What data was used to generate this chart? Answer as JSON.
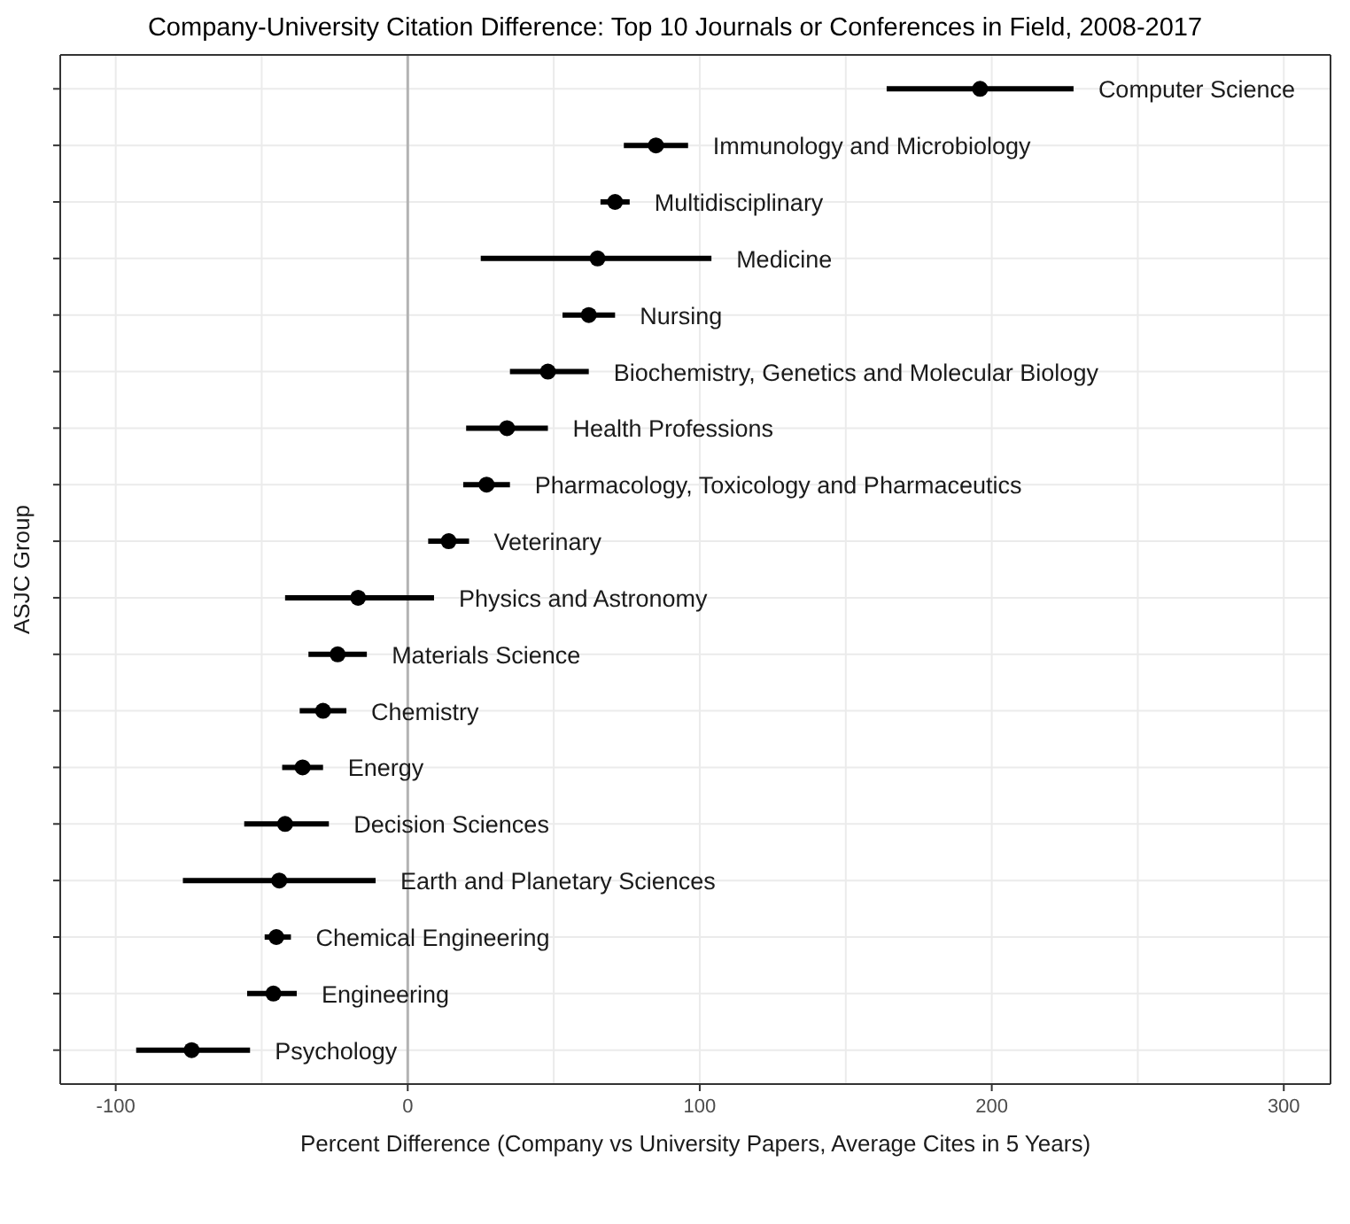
{
  "chart_data": {
    "type": "scatter",
    "orientation": "horizontal",
    "title": "Company-University Citation Difference: Top 10 Journals or Conferences in Field, 2008-2017",
    "xlabel": "Percent Difference (Company vs University Papers, Average Cites in 5 Years)",
    "ylabel": "ASJC Group",
    "categories": [
      "Computer Science",
      "Immunology and Microbiology",
      "Multidisciplinary",
      "Medicine",
      "Nursing",
      "Biochemistry, Genetics and Molecular Biology",
      "Health Professions",
      "Pharmacology, Toxicology and Pharmaceutics",
      "Veterinary",
      "Physics and Astronomy",
      "Materials Science",
      "Chemistry",
      "Energy",
      "Decision Sciences",
      "Earth and Planetary Sciences",
      "Chemical Engineering",
      "Engineering",
      "Psychology"
    ],
    "values": [
      196,
      85,
      71,
      65,
      62,
      48,
      34,
      27,
      14,
      -17,
      -24,
      -29,
      -36,
      -42,
      -44,
      -45,
      -46,
      -74
    ],
    "errors": [
      [
        164,
        228
      ],
      [
        74,
        96
      ],
      [
        66,
        76
      ],
      [
        25,
        104
      ],
      [
        53,
        71
      ],
      [
        35,
        62
      ],
      [
        20,
        48
      ],
      [
        19,
        35
      ],
      [
        7,
        21
      ],
      [
        -42,
        9
      ],
      [
        -34,
        -14
      ],
      [
        -37,
        -21
      ],
      [
        -43,
        -29
      ],
      [
        -56,
        -27
      ],
      [
        -77,
        -11
      ],
      [
        -49,
        -40
      ],
      [
        -55,
        -38
      ],
      [
        -93,
        -54
      ]
    ],
    "color": "#000000",
    "marker": "circle",
    "xlim": [
      -119,
      316
    ],
    "xticks": [
      -100,
      {
        "value": -50,
        "label": null
      },
      0,
      {
        "value": 50,
        "label": null
      },
      100,
      {
        "value": 150,
        "label": null
      },
      200,
      {
        "value": 250,
        "label": null
      },
      300
    ],
    "ref_lines": [
      {
        "axis": "x",
        "value": 0,
        "color": "#b3b3b3"
      }
    ],
    "grid": true,
    "tick_labels": "x"
  }
}
